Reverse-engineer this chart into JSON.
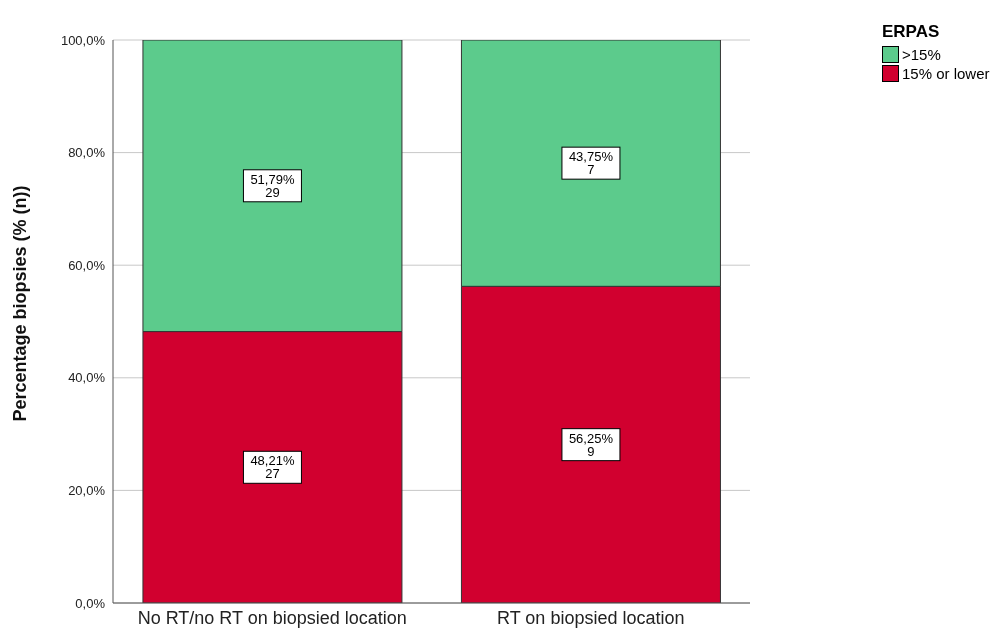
{
  "chart_data": {
    "type": "bar",
    "stacked": true,
    "ylabel": "Percentage biopsies (% (n))",
    "legend_title": "ERPAS",
    "legend": "top right",
    "grid": "y",
    "categories": [
      "No RT/no RT on biopsied location",
      "RT on biopsied location"
    ],
    "series": [
      {
        "name": "15% or lower",
        "color": "#d1002f",
        "values": [
          48.21,
          56.25
        ],
        "value_labels": [
          "48,21%\n27",
          "56,25%\n9"
        ]
      },
      {
        "name": ">15%",
        "color": "#5ccb8c",
        "values": [
          51.79,
          43.75
        ],
        "value_labels": [
          "51,79%\n29",
          "43,75%\n7"
        ]
      }
    ],
    "ylim": [
      0,
      100
    ],
    "yticks": [
      {
        "value": 0,
        "label": "0,0%"
      },
      {
        "value": 20,
        "label": "20,0%"
      },
      {
        "value": 40,
        "label": "40,0%"
      },
      {
        "value": 60,
        "label": "60,0%"
      },
      {
        "value": 80,
        "label": "80,0%"
      },
      {
        "value": 100,
        "label": "100,0%"
      }
    ]
  }
}
